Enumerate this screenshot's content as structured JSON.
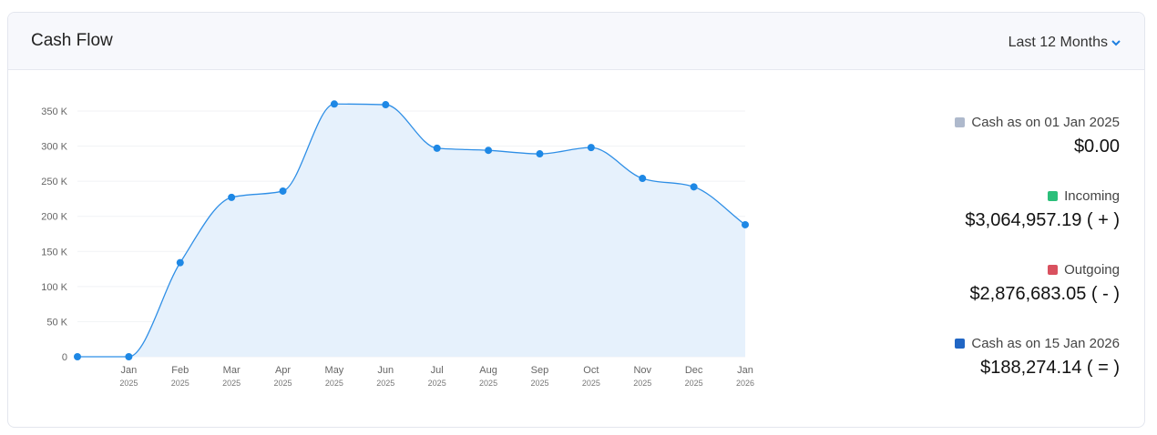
{
  "chart_data": {
    "type": "area",
    "title": "Cash Flow",
    "range_selector": "Last 12 Months",
    "categories": [
      null,
      "Jan",
      "Feb",
      "Mar",
      "Apr",
      "May",
      "Jun",
      "Jul",
      "Aug",
      "Sep",
      "Oct",
      "Nov",
      "Dec",
      "Jan"
    ],
    "years": [
      null,
      "2025",
      "2025",
      "2025",
      "2025",
      "2025",
      "2025",
      "2025",
      "2025",
      "2025",
      "2025",
      "2025",
      "2025",
      "2026"
    ],
    "series": [
      {
        "color": "#2f8fe6",
        "fill": "#e6f1fc",
        "values": [
          0,
          0,
          134000,
          227000,
          236000,
          360000,
          359000,
          297000,
          294000,
          289000,
          298000,
          254000,
          242000,
          188000
        ]
      }
    ],
    "ylim": [
      0,
      350000
    ],
    "yticks": [
      0,
      {
        "value": 50000,
        "label": "50 K"
      },
      {
        "value": 100000,
        "label": "100 K"
      },
      {
        "value": 150000,
        "label": "150 K"
      },
      {
        "value": 200000,
        "label": "200 K"
      },
      {
        "value": 250000,
        "label": "250 K"
      },
      {
        "value": 300000,
        "label": "300 K"
      },
      {
        "value": 350000,
        "label": "350 K"
      }
    ],
    "grid": true,
    "summary": [
      {
        "label": "Cash as on 01 Jan 2025",
        "color": "#aeb9cc",
        "amount": "$0.00"
      },
      {
        "label": "Incoming",
        "color": "#2bbf7a",
        "amount": "$3,064,957.19 ( + )"
      },
      {
        "label": "Outgoing",
        "color": "#d9515f",
        "amount": "$2,876,683.05 ( - )"
      },
      {
        "label": "Cash as on 15 Jan 2026",
        "color": "#2166c4",
        "amount": "$188,274.14 ( = )"
      }
    ]
  }
}
